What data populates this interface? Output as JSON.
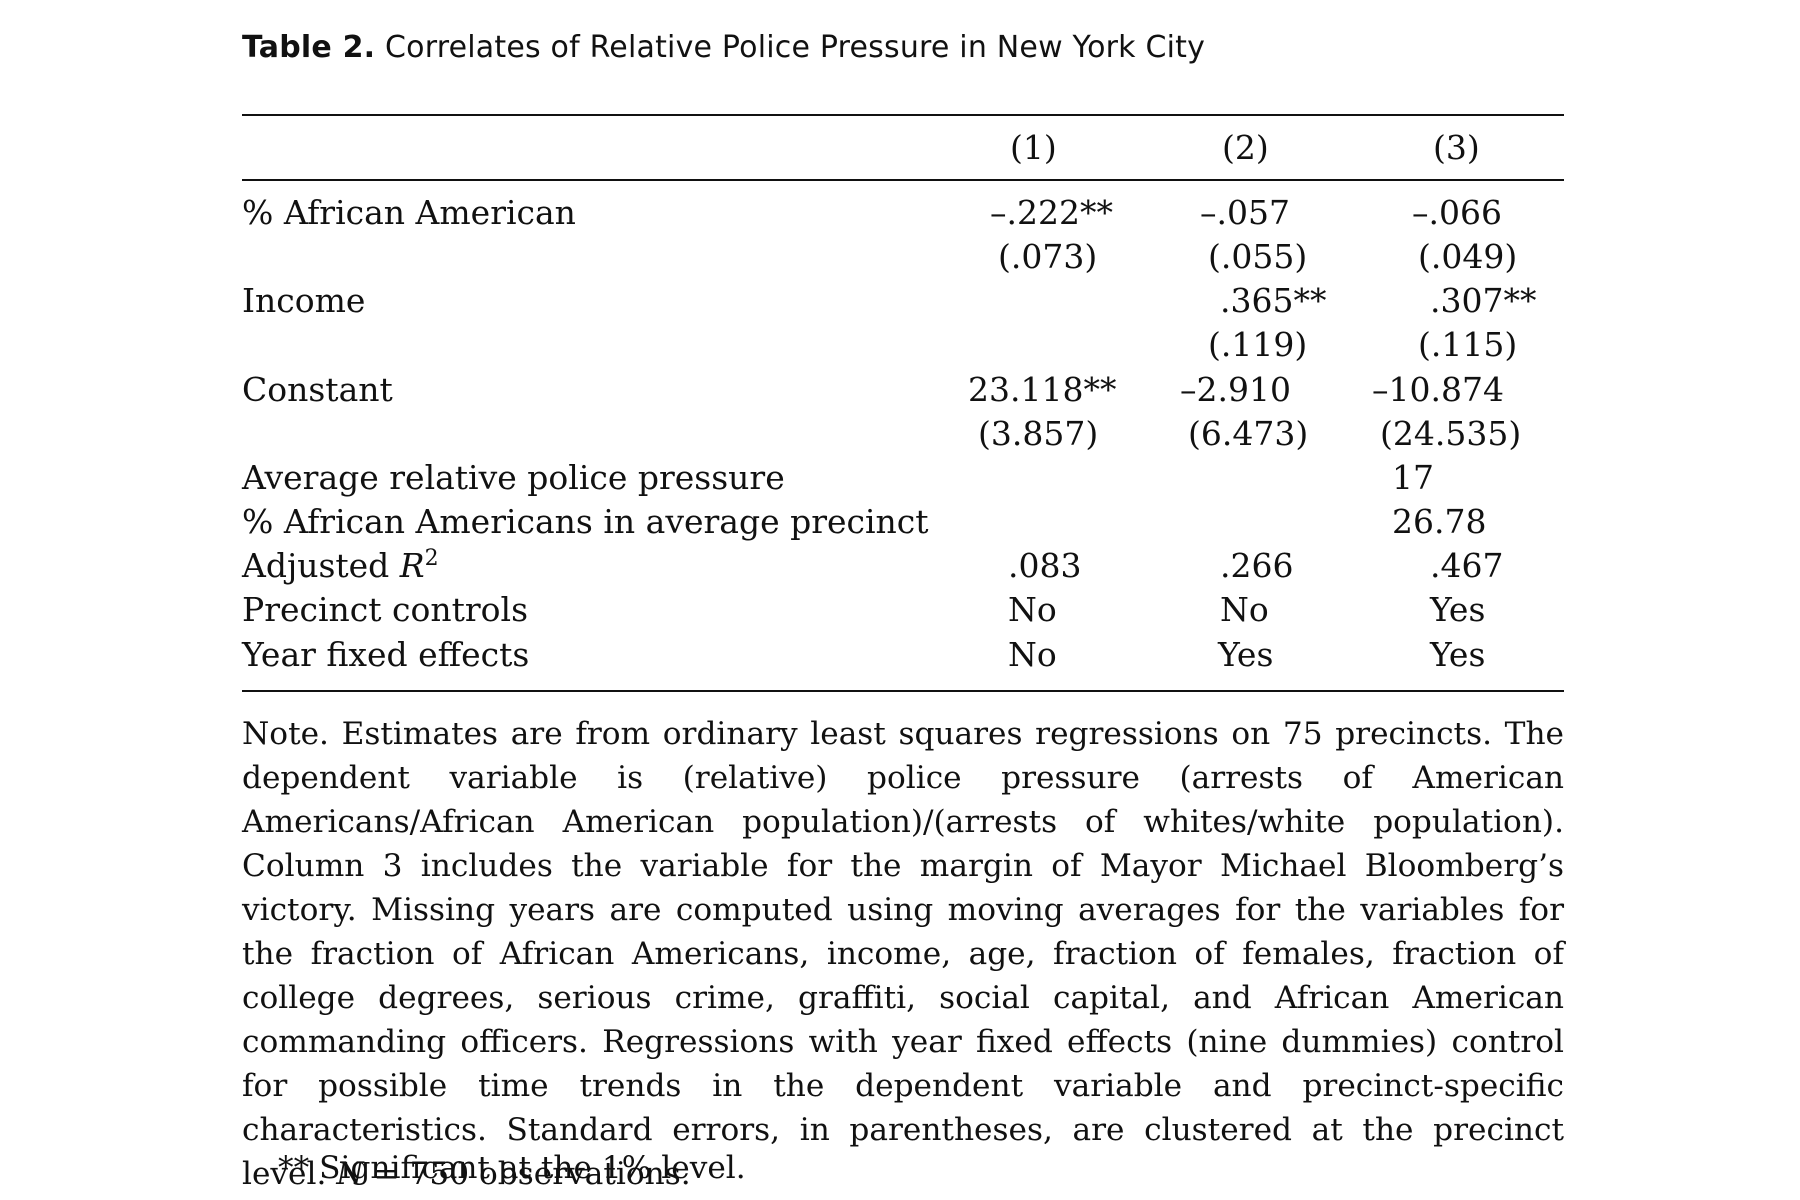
{
  "caption": {
    "label": "Table 2.",
    "title": "Correlates of Relative Police Pressure in New York City"
  },
  "columns": [
    "(1)",
    "(2)",
    "(3)"
  ],
  "rows": {
    "african_american": {
      "label": "% African American",
      "coef": [
        "–.222**",
        "–.057",
        "–.066"
      ],
      "se": [
        "(.073)",
        "(.055)",
        "(.049)"
      ]
    },
    "income": {
      "label": "Income",
      "coef": [
        "",
        ".365**",
        ".307**"
      ],
      "se": [
        "",
        "(.119)",
        "(.115)"
      ]
    },
    "constant": {
      "label": "Constant",
      "coef": [
        "23.118**",
        "–2.910",
        "–10.874"
      ],
      "se": [
        "(3.857)",
        "(6.473)",
        "(24.535)"
      ]
    },
    "avg_pressure": {
      "label": "Average relative police pressure",
      "value": "17"
    },
    "avg_precinct": {
      "label": "% African Americans in average precinct",
      "value": "26.78"
    },
    "adj_r2": {
      "label_prefix": "Adjusted ",
      "label_italic": "R",
      "label_sup": "2",
      "values": [
        ".083",
        ".266",
        ".467"
      ]
    },
    "precinct_controls": {
      "label": "Precinct controls",
      "values": [
        "No",
        "No",
        "Yes"
      ]
    },
    "year_fe": {
      "label": "Year fixed effects",
      "values": [
        "No",
        "Yes",
        "Yes"
      ]
    }
  },
  "note": {
    "main": "Note. Estimates are from ordinary least squares regressions on 75 precincts. The dependent variable is (relative) police pressure (arrests of American Americans/African American population)/(arrests of whites/white population). Column 3 includes the variable for the margin of Mayor Michael Bloomberg’s victory. Missing years are computed using moving averages for the variables for the fraction of African Americans, income, age, fraction of females, fraction of college degrees, serious crime, graffiti, social capital, and African American commanding officers. Regressions with year fixed effects (nine dummies) control for possible time trends in the dependent variable and precinct-specific characteristics. Standard errors, in parentheses, are clustered at the precinct level. ",
    "n_italic": "N",
    "n_rest": " = 750 observations.",
    "footnote": "** Significant at the 1% level."
  }
}
